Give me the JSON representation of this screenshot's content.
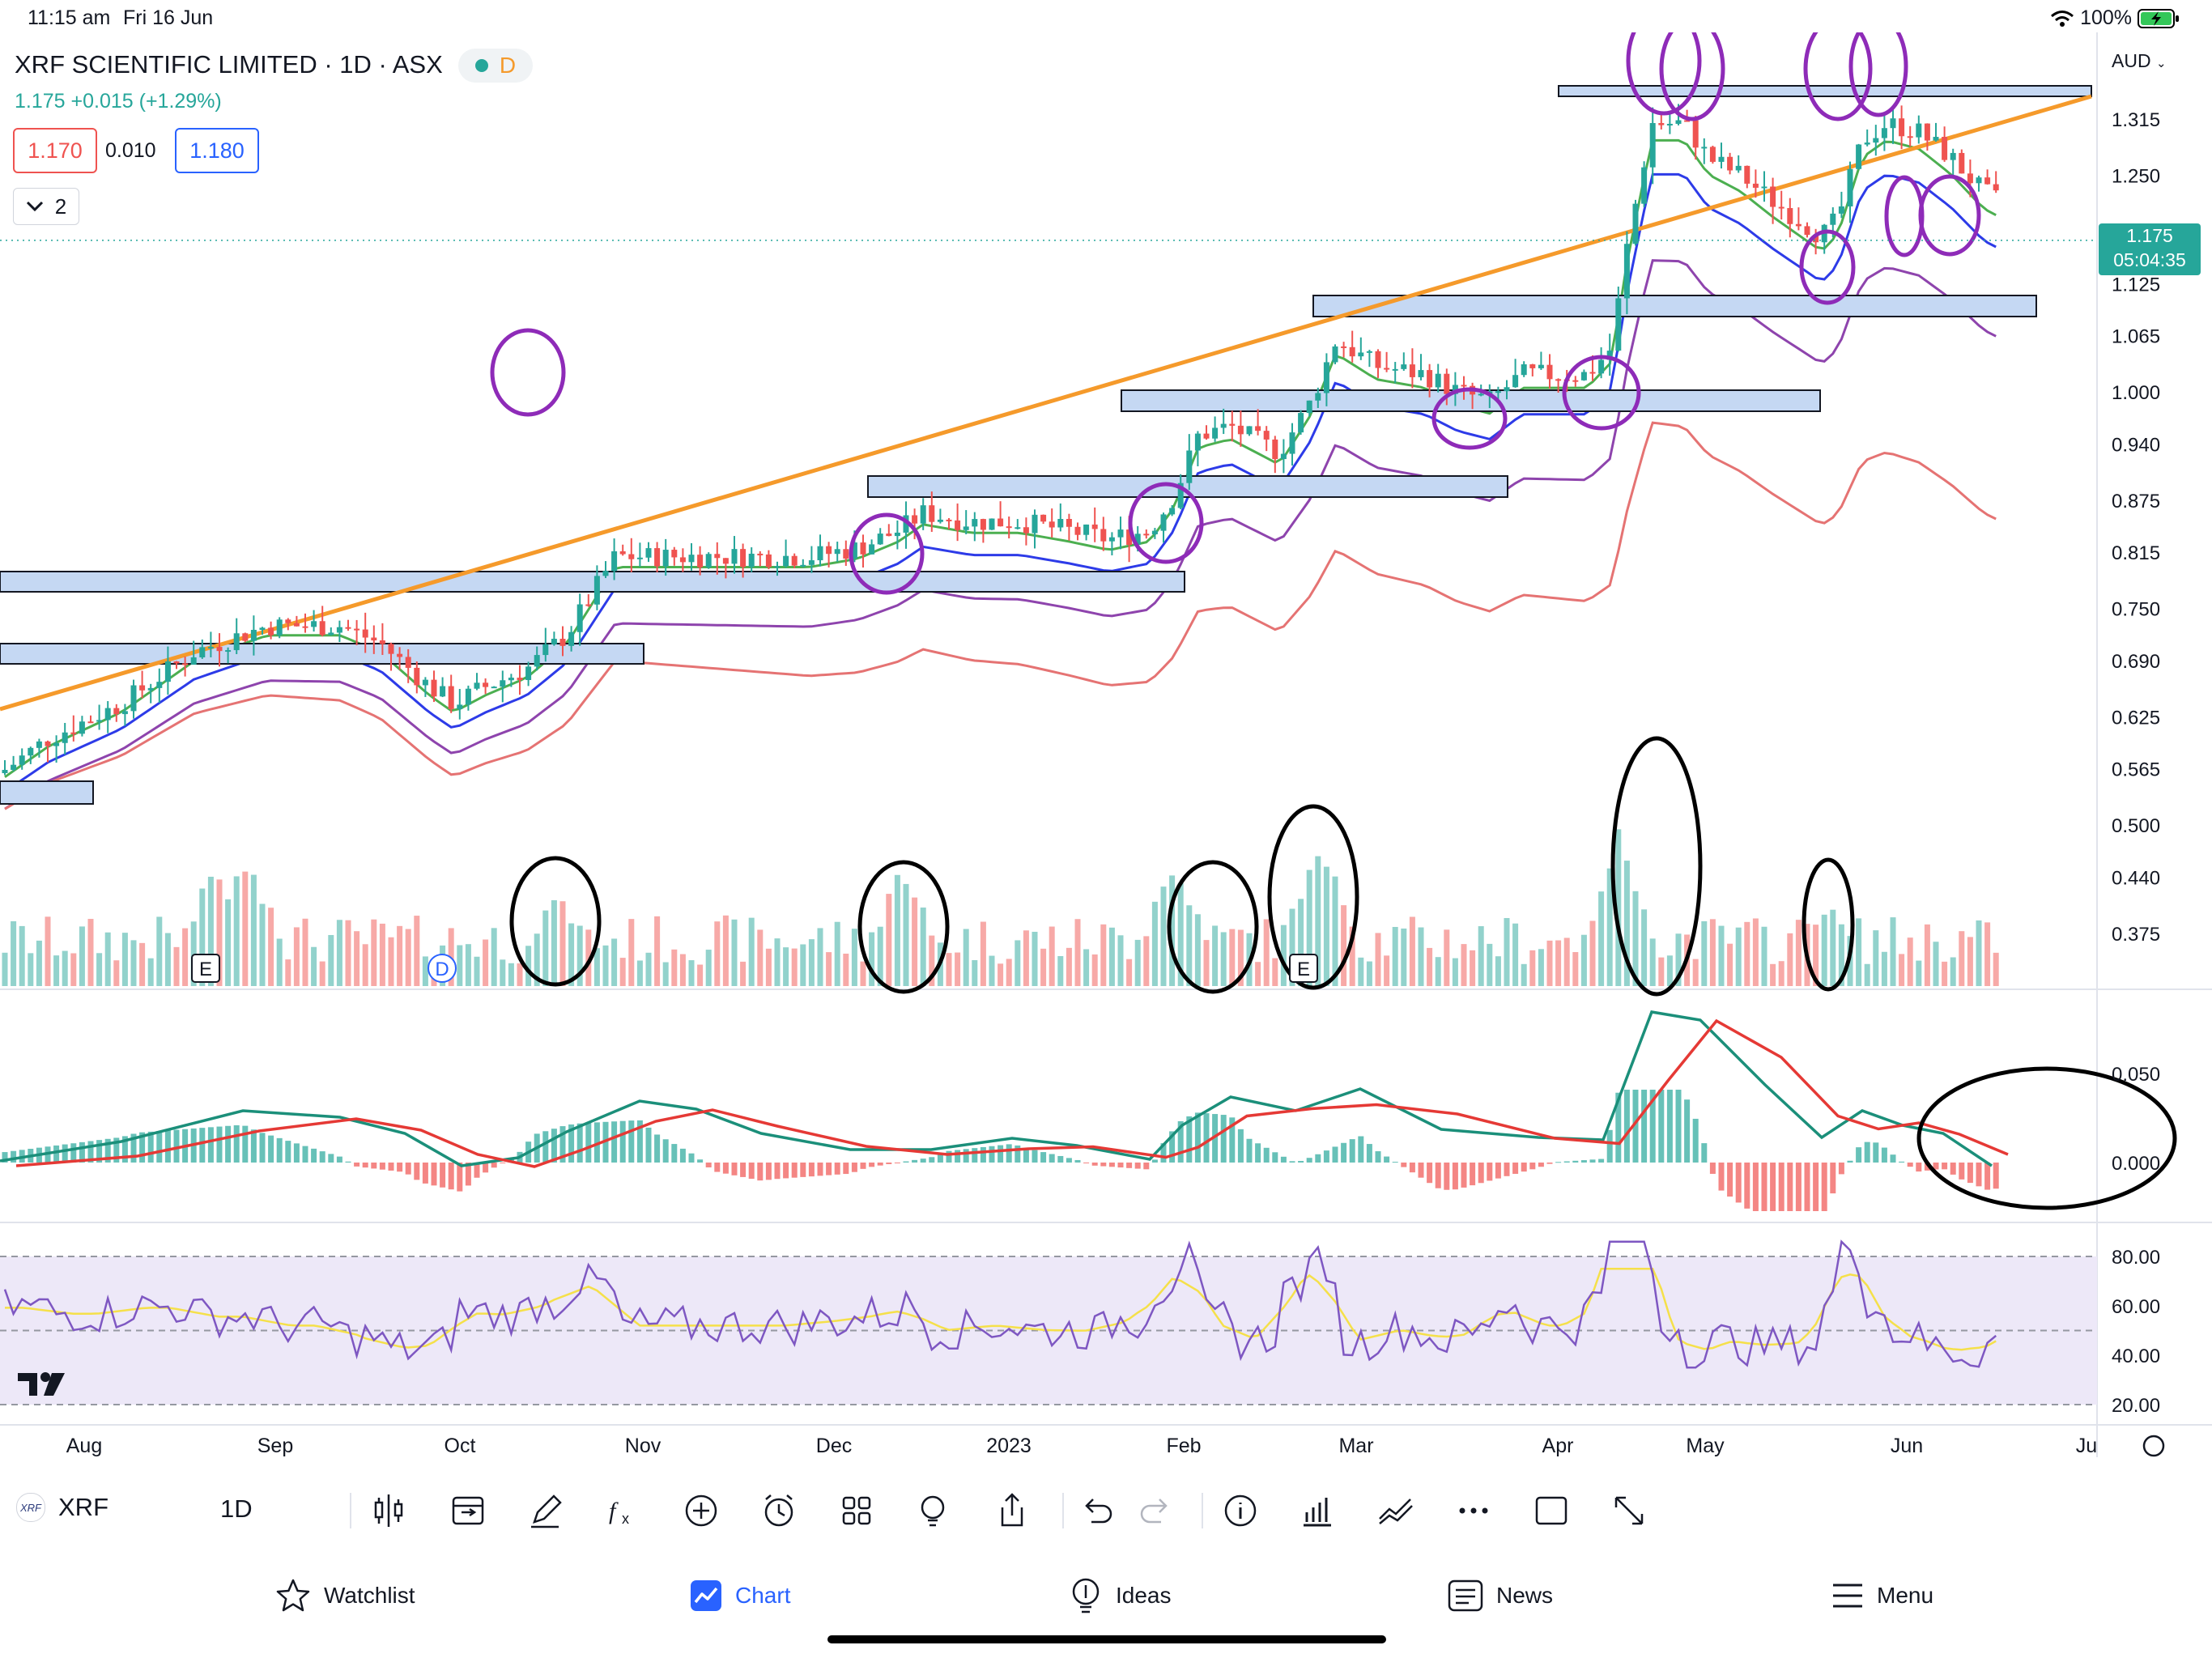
{
  "status": {
    "time": "11:15 am",
    "date": "Fri 16 Jun",
    "battery": "100%"
  },
  "legend": {
    "title": "XRF SCIENTIFIC LIMITED · 1D · ASX",
    "badge": "D",
    "price": "1.175",
    "change": "+0.015 (+1.29%)",
    "bid": "1.170",
    "spread": "0.010",
    "ask": "1.180",
    "collapse_label": "2"
  },
  "currency": "AUD",
  "price_tag": {
    "price": "1.175",
    "countdown": "05:04:35"
  },
  "colors": {
    "up": "#26a69a",
    "down": "#ef5350",
    "trend": "#f59a2b",
    "zone": "#c5d8f3",
    "circle": "#8e2bb8",
    "ema_fast": "#4caf50",
    "ema_mid": "#2d3be8",
    "ema_slow": "#8e44ad",
    "ema_long": "#e57373",
    "macd": "#1b8f7a",
    "signal": "#e53935",
    "rsi": "#7e57c2",
    "rsi_ma": "#f5e04a"
  },
  "chart_data": {
    "type": "candlestick",
    "symbol": "XRF",
    "interval": "1D",
    "price_axis": {
      "ticks": [
        1.315,
        1.25,
        1.125,
        1.065,
        1.0,
        0.94,
        0.875,
        0.815,
        0.75,
        0.69,
        0.625,
        0.565,
        0.5,
        0.44,
        0.375
      ],
      "range": [
        0.34,
        1.38
      ]
    },
    "time_axis": {
      "labels": [
        "Aug",
        "Sep",
        "Oct",
        "Nov",
        "Dec",
        "2023",
        "Feb",
        "Mar",
        "Apr",
        "May",
        "Jun",
        "Ju"
      ]
    },
    "last_price": 1.175,
    "macd": {
      "ticks": [
        "0.050",
        "0.000"
      ]
    },
    "rsi": {
      "ticks": [
        "80.00",
        "60.00",
        "40.00",
        "20.00"
      ],
      "bands": [
        30,
        70
      ]
    },
    "event_markers": [
      "E",
      "D",
      "E"
    ],
    "annotations": {
      "trendline": "ascending",
      "zones": 9,
      "circles_price": 12,
      "ellipses_volume": 6,
      "ellipse_macd": 1
    }
  },
  "toolbar": {
    "symbol": "XRF",
    "symbol_logo": "XRF",
    "interval": "1D"
  },
  "icons": [
    "candles-icon",
    "compare-icon",
    "pencil-icon",
    "fx-icon",
    "plus-circle-icon",
    "alarm-icon",
    "layout-icon",
    "lightbulb-icon",
    "share-icon",
    "undo-icon",
    "redo-icon",
    "info-icon",
    "bars-icon",
    "indicators-icon",
    "more-icon",
    "square-icon",
    "expand-icon"
  ],
  "tabs": [
    {
      "label": "Watchlist",
      "icon": "star-icon"
    },
    {
      "label": "Chart",
      "icon": "chart-icon"
    },
    {
      "label": "Ideas",
      "icon": "lightbulb-icon"
    },
    {
      "label": "News",
      "icon": "news-icon"
    },
    {
      "label": "Menu",
      "icon": "menu-icon"
    }
  ]
}
